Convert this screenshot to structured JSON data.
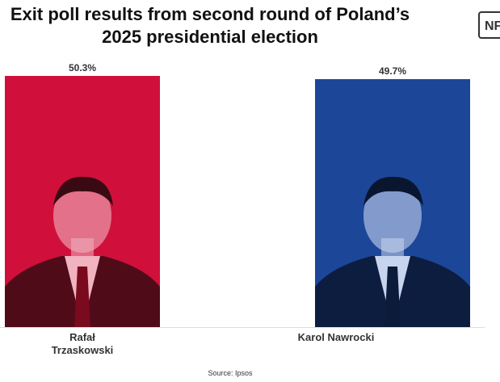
{
  "chart_data": {
    "type": "bar",
    "title": "Exit poll results from second round of Poland’s 2025 presidential election",
    "logo": "NF",
    "categories": [
      "Rafał Trzaskowski",
      "Karol Nawrocki"
    ],
    "values": [
      50.3,
      49.7
    ],
    "value_labels": [
      "50.3%",
      "49.7%"
    ],
    "colors": [
      "#d0103a",
      "#1c4799"
    ],
    "source": "Source: Ipsos"
  }
}
